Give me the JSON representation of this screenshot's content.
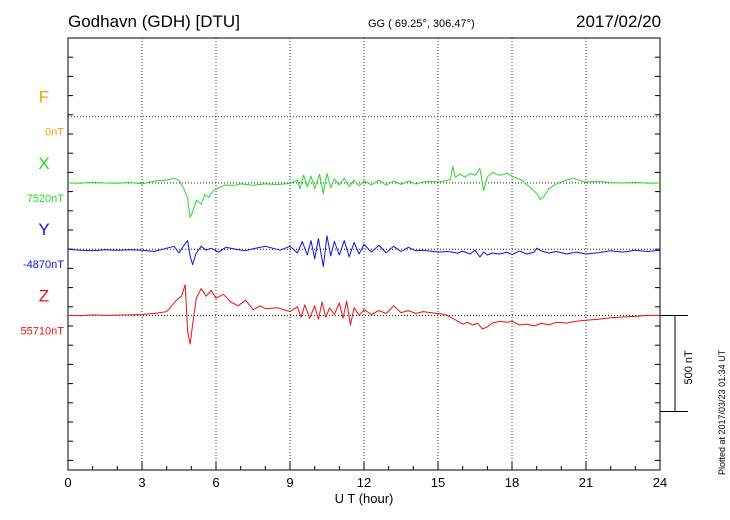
{
  "header": {
    "station": "Godhavn (GDH)  [DTU]",
    "coords": "GG ( 69.25°, 306.47°)",
    "date": "2017/02/20"
  },
  "footer": {
    "plotted": "Plotted at 2017/03/23 01:34 UT"
  },
  "chart_data": {
    "type": "line",
    "xlabel": "U T (hour)",
    "xlim": [
      0,
      24
    ],
    "xticks": [
      0,
      3,
      6,
      9,
      12,
      15,
      18,
      21,
      24
    ],
    "ylim": [
      -1150,
      1100
    ],
    "grid": true,
    "scale_bar": {
      "label": "500 nT",
      "value": 500
    },
    "series": [
      {
        "name": "F",
        "baseline_label": "0nT",
        "baseline": 0,
        "color": "#f5a000",
        "offset": 690,
        "points": []
      },
      {
        "name": "X",
        "baseline_label": "7520nT",
        "baseline": 7520,
        "color": "#22dd22",
        "offset": 345,
        "points": [
          [
            0,
            0
          ],
          [
            0.5,
            -2
          ],
          [
            1,
            3
          ],
          [
            1.5,
            0
          ],
          [
            2,
            -2
          ],
          [
            2.5,
            3
          ],
          [
            3,
            -5
          ],
          [
            3.5,
            10
          ],
          [
            4,
            15
          ],
          [
            4.3,
            25
          ],
          [
            4.5,
            12
          ],
          [
            4.7,
            -30
          ],
          [
            4.85,
            -80
          ],
          [
            4.95,
            -180
          ],
          [
            5.05,
            -150
          ],
          [
            5.2,
            -90
          ],
          [
            5.4,
            -110
          ],
          [
            5.55,
            -60
          ],
          [
            5.7,
            -75
          ],
          [
            5.9,
            -40
          ],
          [
            6.1,
            -25
          ],
          [
            6.4,
            -10
          ],
          [
            6.7,
            -15
          ],
          [
            7,
            -5
          ],
          [
            7.5,
            -12
          ],
          [
            8,
            -5
          ],
          [
            8.5,
            -8
          ],
          [
            9,
            -3
          ],
          [
            9.3,
            15
          ],
          [
            9.4,
            -30
          ],
          [
            9.55,
            40
          ],
          [
            9.7,
            -20
          ],
          [
            9.85,
            35
          ],
          [
            10,
            -30
          ],
          [
            10.2,
            45
          ],
          [
            10.35,
            -55
          ],
          [
            10.5,
            50
          ],
          [
            10.65,
            -25
          ],
          [
            10.8,
            20
          ],
          [
            11,
            -10
          ],
          [
            11.2,
            25
          ],
          [
            11.4,
            -20
          ],
          [
            11.6,
            15
          ],
          [
            11.8,
            -15
          ],
          [
            12,
            10
          ],
          [
            12.3,
            -10
          ],
          [
            12.6,
            15
          ],
          [
            12.9,
            -12
          ],
          [
            13.2,
            10
          ],
          [
            13.5,
            -8
          ],
          [
            13.8,
            10
          ],
          [
            14.1,
            -6
          ],
          [
            14.4,
            5
          ],
          [
            14.7,
            8
          ],
          [
            15,
            5
          ],
          [
            15.3,
            12
          ],
          [
            15.5,
            18
          ],
          [
            15.6,
            85
          ],
          [
            15.7,
            30
          ],
          [
            15.9,
            45
          ],
          [
            16.1,
            30
          ],
          [
            16.3,
            50
          ],
          [
            16.5,
            40
          ],
          [
            16.7,
            75
          ],
          [
            16.85,
            -40
          ],
          [
            17,
            30
          ],
          [
            17.2,
            55
          ],
          [
            17.5,
            40
          ],
          [
            17.8,
            50
          ],
          [
            18,
            35
          ],
          [
            18.2,
            25
          ],
          [
            18.4,
            15
          ],
          [
            18.6,
            -10
          ],
          [
            18.8,
            -30
          ],
          [
            19,
            -55
          ],
          [
            19.15,
            -85
          ],
          [
            19.3,
            -70
          ],
          [
            19.5,
            -30
          ],
          [
            19.8,
            -5
          ],
          [
            20.2,
            15
          ],
          [
            20.5,
            25
          ],
          [
            20.8,
            10
          ],
          [
            21,
            5
          ],
          [
            21.5,
            8
          ],
          [
            22,
            2
          ],
          [
            22.5,
            0
          ],
          [
            23,
            3
          ],
          [
            23.5,
            -2
          ],
          [
            24,
            0
          ]
        ]
      },
      {
        "name": "Y",
        "baseline_label": "-4870nT",
        "baseline": -4870,
        "color": "#1010e0",
        "offset": 0,
        "points": [
          [
            0,
            0
          ],
          [
            0.5,
            -5
          ],
          [
            1,
            -8
          ],
          [
            1.5,
            -3
          ],
          [
            2,
            -5
          ],
          [
            2.5,
            -3
          ],
          [
            3,
            -5
          ],
          [
            3.5,
            -12
          ],
          [
            4,
            5
          ],
          [
            4.3,
            15
          ],
          [
            4.5,
            -20
          ],
          [
            4.7,
            20
          ],
          [
            4.85,
            45
          ],
          [
            4.95,
            -35
          ],
          [
            5.05,
            -80
          ],
          [
            5.2,
            -20
          ],
          [
            5.4,
            15
          ],
          [
            5.6,
            -5
          ],
          [
            5.8,
            5
          ],
          [
            6.1,
            -15
          ],
          [
            6.4,
            10
          ],
          [
            6.8,
            0
          ],
          [
            7.2,
            -8
          ],
          [
            7.6,
            5
          ],
          [
            8,
            15
          ],
          [
            8.3,
            5
          ],
          [
            8.6,
            -5
          ],
          [
            9,
            15
          ],
          [
            9.3,
            -20
          ],
          [
            9.5,
            40
          ],
          [
            9.7,
            -30
          ],
          [
            9.85,
            45
          ],
          [
            10,
            -50
          ],
          [
            10.15,
            55
          ],
          [
            10.35,
            -90
          ],
          [
            10.5,
            70
          ],
          [
            10.65,
            -35
          ],
          [
            10.8,
            40
          ],
          [
            11,
            -30
          ],
          [
            11.2,
            45
          ],
          [
            11.4,
            -40
          ],
          [
            11.6,
            35
          ],
          [
            11.8,
            -25
          ],
          [
            12,
            25
          ],
          [
            12.3,
            -15
          ],
          [
            12.6,
            20
          ],
          [
            12.9,
            -18
          ],
          [
            13.2,
            15
          ],
          [
            13.5,
            -12
          ],
          [
            13.8,
            10
          ],
          [
            14.1,
            -8
          ],
          [
            14.4,
            -5
          ],
          [
            14.7,
            -10
          ],
          [
            15,
            -15
          ],
          [
            15.4,
            -12
          ],
          [
            15.8,
            -20
          ],
          [
            16,
            -10
          ],
          [
            16.3,
            -25
          ],
          [
            16.5,
            -5
          ],
          [
            16.7,
            -40
          ],
          [
            16.85,
            -15
          ],
          [
            17,
            -30
          ],
          [
            17.2,
            -20
          ],
          [
            17.5,
            -25
          ],
          [
            17.8,
            -15
          ],
          [
            18,
            -28
          ],
          [
            18.3,
            -10
          ],
          [
            18.6,
            -25
          ],
          [
            18.9,
            -15
          ],
          [
            19,
            5
          ],
          [
            19.2,
            -10
          ],
          [
            19.5,
            -20
          ],
          [
            19.8,
            -12
          ],
          [
            20.2,
            -25
          ],
          [
            20.6,
            -15
          ],
          [
            21,
            -25
          ],
          [
            21.5,
            -18
          ],
          [
            22,
            -8
          ],
          [
            22.5,
            -15
          ],
          [
            23,
            -5
          ],
          [
            23.5,
            -12
          ],
          [
            24,
            -5
          ]
        ]
      },
      {
        "name": "Z",
        "baseline_label": "55710nT",
        "baseline": 55710,
        "color": "#ee1010",
        "offset": -345,
        "points": [
          [
            0,
            0
          ],
          [
            0.5,
            -2
          ],
          [
            1,
            3
          ],
          [
            1.5,
            0
          ],
          [
            2,
            2
          ],
          [
            2.5,
            3
          ],
          [
            3,
            5
          ],
          [
            3.5,
            10
          ],
          [
            4,
            20
          ],
          [
            4.2,
            50
          ],
          [
            4.4,
            80
          ],
          [
            4.6,
            100
          ],
          [
            4.75,
            160
          ],
          [
            4.85,
            -80
          ],
          [
            4.95,
            -150
          ],
          [
            5.05,
            -50
          ],
          [
            5.2,
            90
          ],
          [
            5.4,
            140
          ],
          [
            5.6,
            100
          ],
          [
            5.8,
            130
          ],
          [
            6,
            90
          ],
          [
            6.3,
            110
          ],
          [
            6.6,
            70
          ],
          [
            6.9,
            50
          ],
          [
            7.2,
            80
          ],
          [
            7.5,
            30
          ],
          [
            7.8,
            50
          ],
          [
            8,
            35
          ],
          [
            8.5,
            40
          ],
          [
            9,
            20
          ],
          [
            9.3,
            45
          ],
          [
            9.45,
            -10
          ],
          [
            9.6,
            55
          ],
          [
            9.8,
            -15
          ],
          [
            10,
            50
          ],
          [
            10.15,
            -20
          ],
          [
            10.3,
            70
          ],
          [
            10.45,
            -10
          ],
          [
            10.6,
            40
          ],
          [
            10.8,
            5
          ],
          [
            11,
            65
          ],
          [
            11.15,
            -15
          ],
          [
            11.3,
            75
          ],
          [
            11.45,
            -50
          ],
          [
            11.6,
            40
          ],
          [
            11.8,
            0
          ],
          [
            12,
            30
          ],
          [
            12.3,
            5
          ],
          [
            12.6,
            25
          ],
          [
            12.9,
            10
          ],
          [
            13.2,
            50
          ],
          [
            13.5,
            15
          ],
          [
            13.8,
            25
          ],
          [
            14.1,
            10
          ],
          [
            14.4,
            20
          ],
          [
            14.7,
            15
          ],
          [
            15,
            10
          ],
          [
            15.3,
            5
          ],
          [
            15.6,
            -15
          ],
          [
            15.8,
            -30
          ],
          [
            16,
            -45
          ],
          [
            16.2,
            -35
          ],
          [
            16.4,
            -50
          ],
          [
            16.6,
            -40
          ],
          [
            16.8,
            -70
          ],
          [
            17,
            -60
          ],
          [
            17.2,
            -40
          ],
          [
            17.5,
            -30
          ],
          [
            17.8,
            -35
          ],
          [
            18,
            -30
          ],
          [
            18.3,
            -50
          ],
          [
            18.6,
            -45
          ],
          [
            18.9,
            -55
          ],
          [
            19.2,
            -40
          ],
          [
            19.5,
            -50
          ],
          [
            19.8,
            -35
          ],
          [
            20.2,
            -40
          ],
          [
            20.6,
            -30
          ],
          [
            21,
            -25
          ],
          [
            21.5,
            -20
          ],
          [
            22,
            -12
          ],
          [
            22.5,
            -8
          ],
          [
            23,
            -5
          ],
          [
            23.5,
            0
          ],
          [
            24,
            0
          ]
        ]
      }
    ]
  }
}
